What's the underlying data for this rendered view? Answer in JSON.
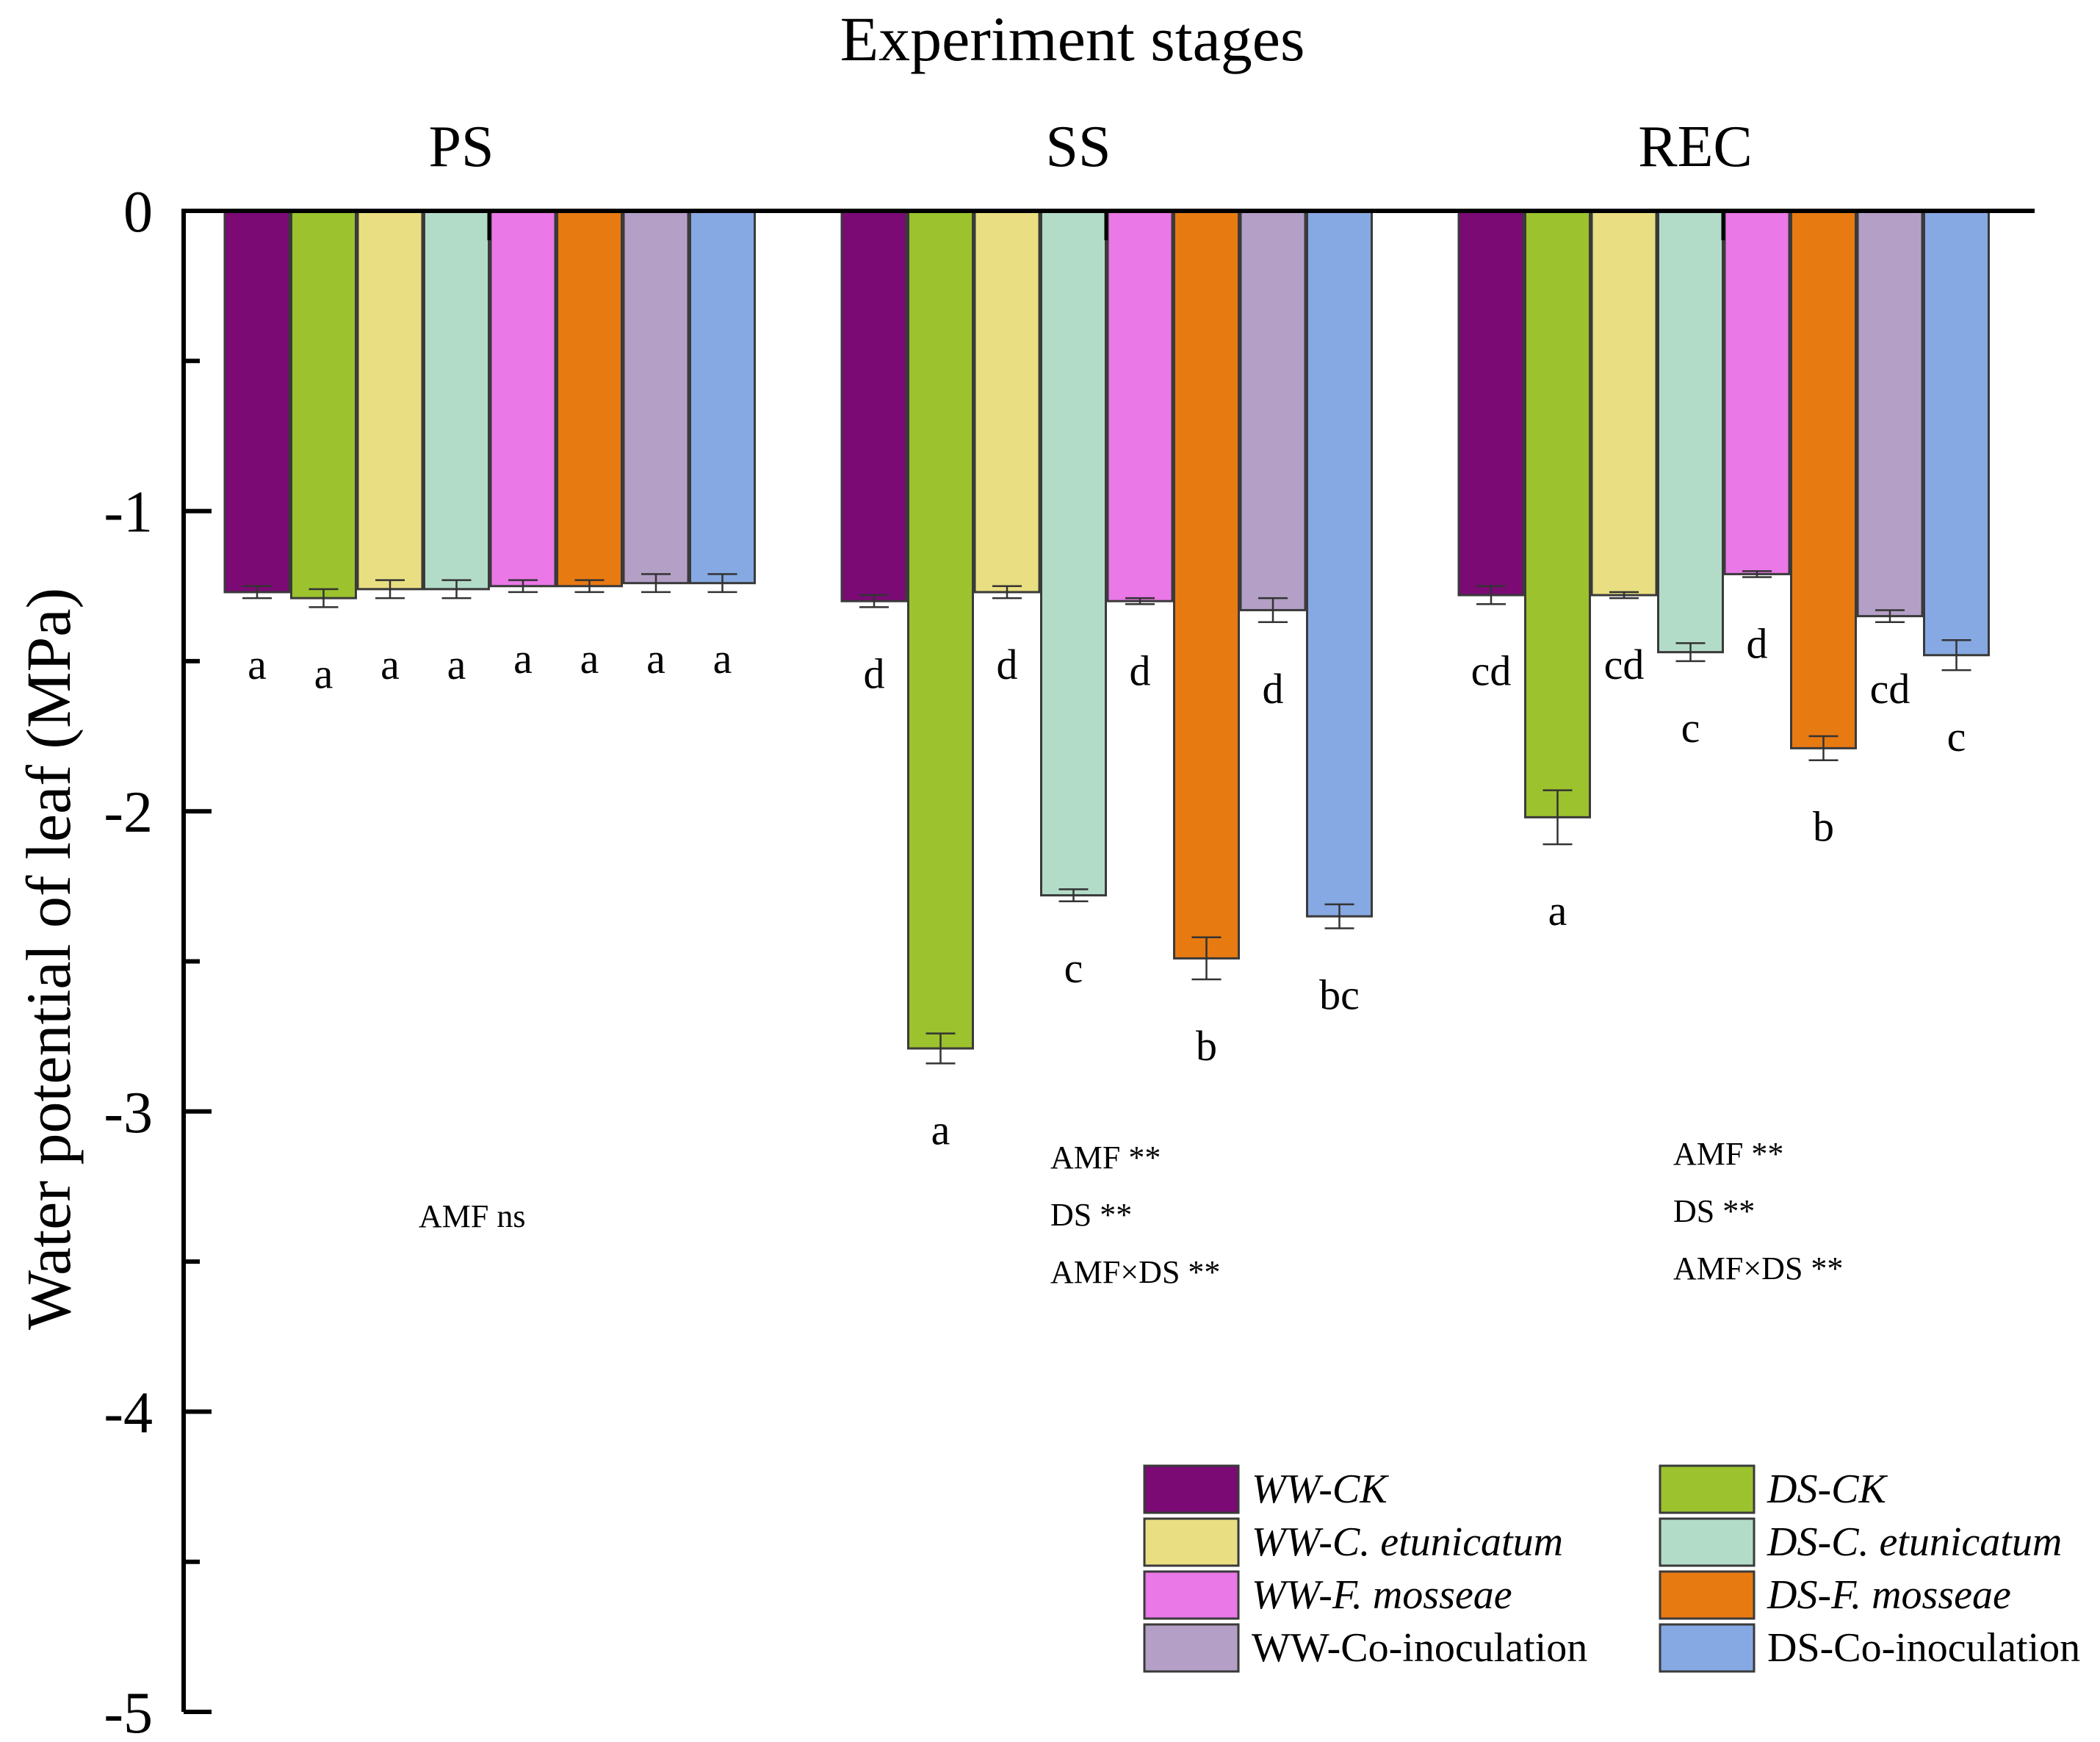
{
  "chart_data": {
    "type": "bar",
    "title": "Experiment stages",
    "ylabel": "Water potential of leaf  (MPa)",
    "ylim": [
      -5,
      0
    ],
    "yticks": [
      0,
      -1,
      -2,
      -3,
      -4,
      -5
    ],
    "ytick_labels": [
      "0",
      "-1",
      "-2",
      "-3",
      "-4",
      "-5"
    ],
    "categories": [
      "PS",
      "SS",
      "REC"
    ],
    "series": [
      {
        "name": "WW-CK",
        "color": "#7b0a75",
        "italic": true,
        "values": [
          -1.27,
          -1.3,
          -1.28
        ],
        "errors": [
          0.02,
          0.02,
          0.03
        ],
        "letters": [
          "a",
          "d",
          "cd"
        ]
      },
      {
        "name": "DS-CK",
        "color": "#9cc22d",
        "italic": true,
        "values": [
          -1.29,
          -2.79,
          -2.02
        ],
        "errors": [
          0.03,
          0.05,
          0.09
        ],
        "letters": [
          "a",
          "a",
          "a"
        ]
      },
      {
        "name": "WW-C. etunicatum",
        "color": "#e9df82",
        "italic": true,
        "values": [
          -1.26,
          -1.27,
          -1.28
        ],
        "errors": [
          0.03,
          0.02,
          0.01
        ],
        "letters": [
          "a",
          "d",
          "cd"
        ]
      },
      {
        "name": "DS-C. etunicatum",
        "color": "#b3dcc8",
        "italic": true,
        "values": [
          -1.26,
          -2.28,
          -1.47
        ],
        "errors": [
          0.03,
          0.02,
          0.03
        ],
        "letters": [
          "a",
          "c",
          "c"
        ]
      },
      {
        "name": "WW-F. mosseae",
        "color": "#ea78e6",
        "italic": true,
        "values": [
          -1.25,
          -1.3,
          -1.21
        ],
        "errors": [
          0.02,
          0.01,
          0.01
        ],
        "letters": [
          "a",
          "d",
          "d"
        ]
      },
      {
        "name": "DS-F. mosseae",
        "color": "#e87a12",
        "italic": true,
        "values": [
          -1.25,
          -2.49,
          -1.79
        ],
        "errors": [
          0.02,
          0.07,
          0.04
        ],
        "letters": [
          "a",
          "b",
          "b"
        ]
      },
      {
        "name": "WW-Co-inoculation",
        "color": "#b49fc6",
        "italic": false,
        "values": [
          -1.24,
          -1.33,
          -1.35
        ],
        "errors": [
          0.03,
          0.04,
          0.02
        ],
        "letters": [
          "a",
          "d",
          "cd"
        ]
      },
      {
        "name": "DS-Co-inoculation",
        "color": "#86a9e3",
        "italic": false,
        "values": [
          -1.24,
          -2.35,
          -1.48
        ],
        "errors": [
          0.03,
          0.04,
          0.05
        ],
        "letters": [
          "a",
          "bc",
          "c"
        ]
      }
    ],
    "annotations": [
      {
        "stage": "PS",
        "lines": [
          "AMF  ns"
        ]
      },
      {
        "stage": "SS",
        "lines": [
          "AMF  **",
          "DS  **",
          "AMF×DS  **"
        ]
      },
      {
        "stage": "REC",
        "lines": [
          "AMF  **",
          "DS  **",
          "AMF×DS  **"
        ]
      }
    ],
    "legend": {
      "position": "bottom-right",
      "columns": 2,
      "order": [
        "WW-CK",
        "DS-CK",
        "WW-C. etunicatum",
        "DS-C. etunicatum",
        "WW-F. mosseae",
        "DS-F. mosseae",
        "WW-Co-inoculation",
        "DS-Co-inoculation"
      ]
    },
    "grid": false
  }
}
